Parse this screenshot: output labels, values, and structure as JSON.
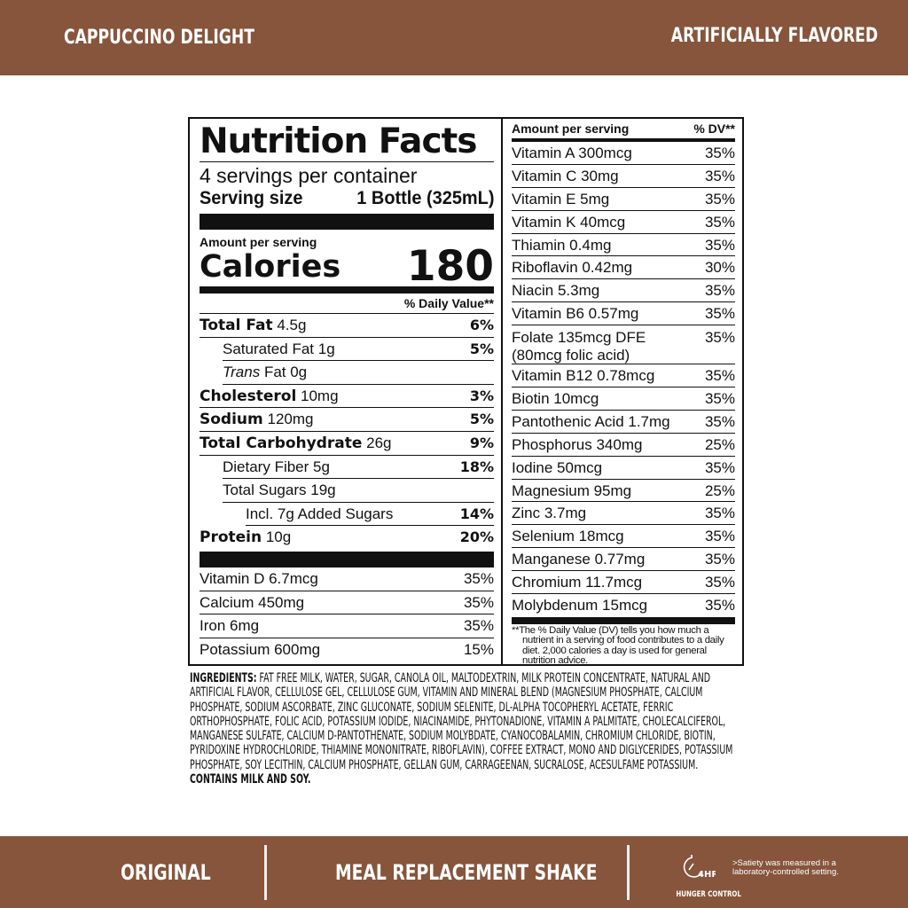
{
  "header": {
    "flavor": "CAPPUCCINO DELIGHT",
    "flavor_note": "ARTIFICIALLY FLAVORED"
  },
  "label": {
    "title": "Nutrition Facts",
    "servings": "4 servings per container",
    "serving_size_label": "Serving size",
    "serving_size_value": "1 Bottle (325mL)",
    "amount_per_serving": "Amount per serving",
    "calories_label": "Calories",
    "calories_value": "180",
    "dv_header": "% Daily Value**",
    "nutrients": [
      {
        "name": "Total Fat",
        "amount": "4.5g",
        "dv": "6%",
        "bold": true,
        "indent": 0
      },
      {
        "name": "Saturated Fat",
        "amount": "1g",
        "dv": "5%",
        "bold": false,
        "indent": 1
      },
      {
        "name": "Trans",
        "amount": "Fat 0g",
        "dv": "",
        "bold": false,
        "indent": 1,
        "italic": true
      },
      {
        "name": "Cholesterol",
        "amount": "10mg",
        "dv": "3%",
        "bold": true,
        "indent": 0
      },
      {
        "name": "Sodium",
        "amount": "120mg",
        "dv": "5%",
        "bold": true,
        "indent": 0
      },
      {
        "name": "Total Carbohydrate",
        "amount": "26g",
        "dv": "9%",
        "bold": true,
        "indent": 0
      },
      {
        "name": "Dietary Fiber",
        "amount": "5g",
        "dv": "18%",
        "bold": false,
        "indent": 1
      },
      {
        "name": "Total Sugars",
        "amount": "19g",
        "dv": "",
        "bold": false,
        "indent": 1
      },
      {
        "name": "Incl. 7g Added Sugars",
        "amount": "",
        "dv": "14%",
        "bold": false,
        "indent": 2
      },
      {
        "name": "Protein",
        "amount": "10g",
        "dv": "20%",
        "bold": true,
        "indent": 0
      }
    ],
    "vitamins_left": [
      {
        "name": "Vitamin D 6.7mcg",
        "dv": "35%"
      },
      {
        "name": "Calcium 450mg",
        "dv": "35%"
      },
      {
        "name": "Iron 6mg",
        "dv": "35%"
      },
      {
        "name": "Potassium 600mg",
        "dv": "15%"
      }
    ],
    "right_header_amount": "Amount per serving",
    "right_header_dv": "% DV**",
    "vitamins_right": [
      {
        "name": "Vitamin A 300mcg",
        "dv": "35%"
      },
      {
        "name": "Vitamin C 30mg",
        "dv": "35%"
      },
      {
        "name": "Vitamin E 5mg",
        "dv": "35%"
      },
      {
        "name": "Vitamin K 40mcg",
        "dv": "35%"
      },
      {
        "name": "Thiamin 0.4mg",
        "dv": "35%"
      },
      {
        "name": "Riboflavin 0.42mg",
        "dv": "30%"
      },
      {
        "name": "Niacin 5.3mg",
        "dv": "35%"
      },
      {
        "name": "Vitamin B6 0.57mg",
        "dv": "35%"
      },
      {
        "name": "Folate 135mcg DFE\n    (80mcg folic acid)",
        "dv": "35%"
      },
      {
        "name": "Vitamin B12 0.78mcg",
        "dv": "35%"
      },
      {
        "name": "Biotin 10mcg",
        "dv": "35%"
      },
      {
        "name": "Pantothenic Acid 1.7mg",
        "dv": "35%"
      },
      {
        "name": "Phosphorus 340mg",
        "dv": "25%"
      },
      {
        "name": "Iodine 50mcg",
        "dv": "35%"
      },
      {
        "name": "Magnesium 95mg",
        "dv": "25%"
      },
      {
        "name": "Zinc 3.7mg",
        "dv": "35%"
      },
      {
        "name": "Selenium 18mcg",
        "dv": "35%"
      },
      {
        "name": "Manganese 0.77mg",
        "dv": "35%"
      },
      {
        "name": "Chromium 11.7mcg",
        "dv": "35%"
      },
      {
        "name": "Molybdenum 15mcg",
        "dv": "35%"
      }
    ],
    "footnote": "**The % Daily Value (DV) tells you how much a nutrient in a serving of food contributes to a daily diet. 2,000 calories a day is used for general nutrition advice."
  },
  "ingredients": {
    "label": "INGREDIENTS:",
    "text": " FAT FREE MILK, WATER, SUGAR, CANOLA OIL, MALTODEXTRIN, MILK PROTEIN CONCENTRATE, NATURAL AND ARTIFICIAL FLAVOR, CELLULOSE GEL, CELLULOSE GUM,  VITAMIN AND MINERAL BLEND (MAGNESIUM PHOSPHATE, CALCIUM PHOSPHATE, SODIUM ASCORBATE, ZINC GLUCONATE, SODIUM SELENITE, DL-ALPHA TOCOPHERYL ACETATE, FERRIC ORTHOPHOSPHATE, FOLIC ACID, POTASSIUM IODIDE, NIACINAMIDE, PHYTONADIONE, VITAMIN A PALMITATE, CHOLECALCIFEROL, MANGANESE SULFATE, CALCIUM D-PANTOTHENATE, SODIUM MOLYBDATE, CYANOCOBALAMIN, CHROMIUM CHLORIDE, BIOTIN, PYRIDOXINE HYDROCHLORIDE, THIAMINE MONONITRATE, RIBOFLAVIN), COFFEE EXTRACT, MONO AND DIGLYCERIDES, POTASSIUM PHOSPHATE, SOY LECITHIN, CALCIUM PHOSPHATE, GELLAN GUM, CARRAGEENAN, SUCRALOSE, ACESULFAME POTASSIUM.",
    "allergens": "CONTAINS MILK AND SOY."
  },
  "footer": {
    "variant": "ORIGINAL",
    "product_type": "MEAL REPLACEMENT SHAKE",
    "badge_number": "4HR",
    "badge_label": "HUNGER CONTROL",
    "badge_note": ">Satiety was measured in a laboratory-controlled setting."
  },
  "colors": {
    "brand_brown": "#86553c"
  }
}
